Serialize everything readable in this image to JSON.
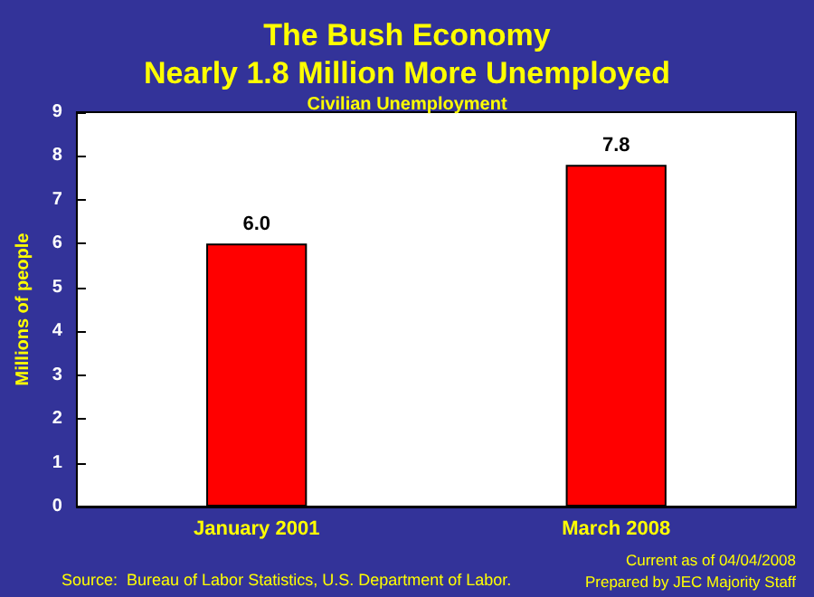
{
  "chart_data": {
    "type": "bar",
    "title": "The Bush Economy\nNearly 1.8 Million More Unemployed",
    "subtitle": "Civilian Unemployment",
    "ylabel": "Millions of people",
    "categories": [
      "January 2001",
      "March 2008"
    ],
    "values": [
      6.0,
      7.8
    ],
    "value_labels": [
      "6.0",
      "7.8"
    ],
    "color": "#ff0000",
    "ylim": [
      0,
      9
    ],
    "yticks": [
      0,
      1,
      2,
      3,
      4,
      5,
      6,
      7,
      8,
      9
    ],
    "grid": false,
    "annotations": [
      "Source:  Bureau of Labor Statistics, U.S. Department of Labor.",
      "Current as of 04/04/2008",
      "Prepared by JEC Majority Staff"
    ]
  }
}
